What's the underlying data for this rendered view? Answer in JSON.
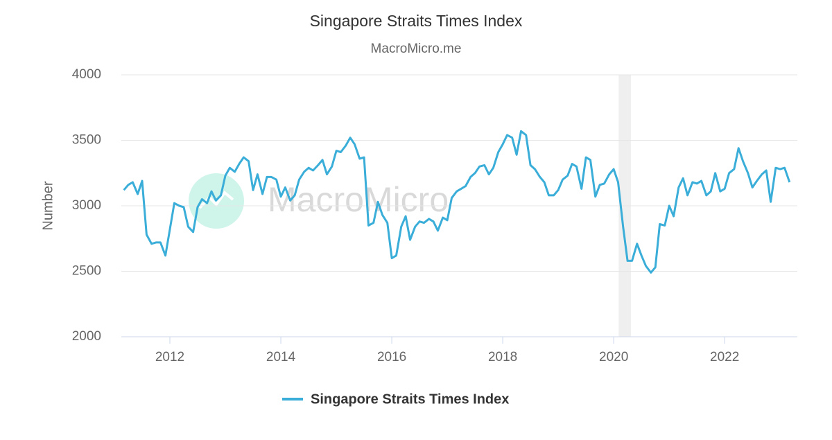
{
  "chart_data": {
    "type": "line",
    "title": "Singapore Straits Times Index",
    "subtitle": "MacroMicro.me",
    "watermark": "MacroMicro",
    "y_label": "Number",
    "xlim": [
      2011.125,
      2023.31
    ],
    "xticks": [
      2012,
      2014,
      2016,
      2018,
      2020,
      2022
    ],
    "ylim": [
      2000,
      4000
    ],
    "yticks": [
      2000,
      2500,
      3000,
      3500,
      4000
    ],
    "grid": true,
    "legend": "bottom",
    "shaded_regions": [
      [
        2020.09,
        2020.31
      ]
    ],
    "x": [
      2011.17,
      2011.25,
      2011.33,
      2011.42,
      2011.5,
      2011.58,
      2011.67,
      2011.75,
      2011.83,
      2011.92,
      2012,
      2012.08,
      2012.17,
      2012.25,
      2012.33,
      2012.42,
      2012.5,
      2012.58,
      2012.67,
      2012.75,
      2012.83,
      2012.92,
      2013,
      2013.08,
      2013.17,
      2013.25,
      2013.33,
      2013.42,
      2013.5,
      2013.58,
      2013.67,
      2013.75,
      2013.83,
      2013.92,
      2014,
      2014.08,
      2014.17,
      2014.25,
      2014.33,
      2014.42,
      2014.5,
      2014.58,
      2014.67,
      2014.75,
      2014.83,
      2014.92,
      2015,
      2015.08,
      2015.17,
      2015.25,
      2015.33,
      2015.42,
      2015.5,
      2015.58,
      2015.67,
      2015.75,
      2015.83,
      2015.92,
      2016,
      2016.08,
      2016.17,
      2016.25,
      2016.33,
      2016.42,
      2016.5,
      2016.58,
      2016.67,
      2016.75,
      2016.83,
      2016.92,
      2017,
      2017.08,
      2017.17,
      2017.25,
      2017.33,
      2017.42,
      2017.5,
      2017.58,
      2017.67,
      2017.75,
      2017.83,
      2017.92,
      2018,
      2018.08,
      2018.17,
      2018.25,
      2018.33,
      2018.42,
      2018.5,
      2018.58,
      2018.67,
      2018.75,
      2018.83,
      2018.92,
      2019,
      2019.08,
      2019.17,
      2019.25,
      2019.33,
      2019.42,
      2019.5,
      2019.58,
      2019.67,
      2019.75,
      2019.83,
      2019.92,
      2020,
      2020.08,
      2020.17,
      2020.25,
      2020.33,
      2020.42,
      2020.5,
      2020.58,
      2020.67,
      2020.75,
      2020.83,
      2020.92,
      2021,
      2021.08,
      2021.17,
      2021.25,
      2021.33,
      2021.42,
      2021.5,
      2021.58,
      2021.67,
      2021.75,
      2021.83,
      2021.92,
      2022,
      2022.08,
      2022.17,
      2022.25,
      2022.33,
      2022.42,
      2022.5,
      2022.58,
      2022.67,
      2022.75,
      2022.83,
      2022.92,
      2023,
      2023.08,
      2023.17
    ],
    "series": [
      {
        "name": "Singapore Straits Times Index",
        "color": "#3aaed8",
        "values": [
          3120,
          3160,
          3180,
          3090,
          3190,
          2780,
          2710,
          2720,
          2720,
          2620,
          2820,
          3020,
          3000,
          2990,
          2840,
          2800,
          2990,
          3050,
          3020,
          3110,
          3040,
          3080,
          3230,
          3290,
          3260,
          3320,
          3370,
          3340,
          3120,
          3240,
          3090,
          3220,
          3220,
          3200,
          3070,
          3140,
          3040,
          3080,
          3200,
          3260,
          3290,
          3270,
          3310,
          3350,
          3240,
          3300,
          3420,
          3410,
          3460,
          3520,
          3470,
          3360,
          3370,
          2850,
          2870,
          3030,
          2930,
          2870,
          2600,
          2620,
          2840,
          2920,
          2740,
          2840,
          2880,
          2870,
          2900,
          2880,
          2810,
          2910,
          2890,
          3060,
          3110,
          3130,
          3150,
          3220,
          3250,
          3300,
          3310,
          3240,
          3290,
          3410,
          3470,
          3540,
          3520,
          3390,
          3570,
          3540,
          3310,
          3280,
          3220,
          3180,
          3080,
          3080,
          3120,
          3200,
          3230,
          3320,
          3300,
          3130,
          3370,
          3350,
          3070,
          3160,
          3170,
          3240,
          3280,
          3180,
          2840,
          2580,
          2580,
          2710,
          2620,
          2540,
          2490,
          2530,
          2860,
          2850,
          3000,
          2920,
          3140,
          3210,
          3080,
          3180,
          3170,
          3190,
          3080,
          3110,
          3250,
          3110,
          3130,
          3250,
          3280,
          3440,
          3340,
          3250,
          3140,
          3190,
          3240,
          3270,
          3030,
          3290,
          3280,
          3290,
          3180
        ]
      }
    ]
  }
}
